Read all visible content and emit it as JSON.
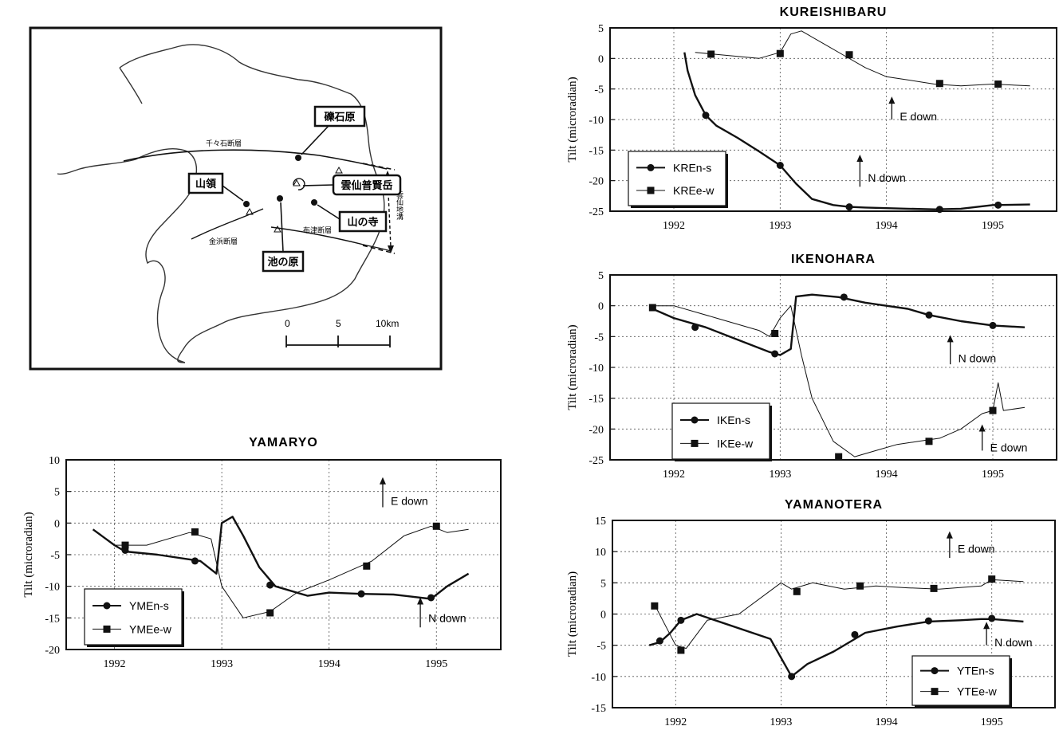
{
  "map": {
    "labels": {
      "reki": "礫石原",
      "unzen": "雲仙普賢岳",
      "yamaryo": "山領",
      "yamanotera": "山の寺",
      "ikenohara": "池の原"
    },
    "faults": {
      "chijiwa": "千々石断層",
      "kanahama": "金浜断層",
      "futsu": "布津断層",
      "graben": "雲仙地溝"
    },
    "scale": {
      "zero": "0",
      "five": "5",
      "ten": "10km"
    }
  },
  "chart_data": [
    {
      "id": "kureishibaru",
      "type": "line",
      "title": "KUREISHIBARU",
      "ylabel": "Tilt (microradian)",
      "xlabel": "",
      "xlim": [
        1991.4,
        1995.6
      ],
      "ylim": [
        -25,
        5
      ],
      "yticks": [
        5,
        0,
        -5,
        -10,
        -15,
        -20,
        -25
      ],
      "xticks": [
        1992,
        1993,
        1994,
        1995
      ],
      "grid": true,
      "legend_position": "bottom-left",
      "annotations": [
        {
          "text": "E down",
          "x": 1994.05,
          "y": -9.5,
          "arrow_from": -10,
          "arrow_to": -6.5
        },
        {
          "text": "N down",
          "x": 1993.75,
          "y": -19.5,
          "arrow_from": -21,
          "arrow_to": -16
        }
      ],
      "series": [
        {
          "name": "KREn-s",
          "marker": "circle",
          "weight": "thick",
          "x": [
            1992.1,
            1992.13,
            1992.2,
            1992.3,
            1992.4,
            1992.6,
            1992.8,
            1993.0,
            1993.15,
            1993.3,
            1993.5,
            1993.65,
            1993.8,
            1994.0,
            1994.2,
            1994.45,
            1994.7,
            1995.0,
            1995.35
          ],
          "y": [
            1,
            -2,
            -6,
            -9.3,
            -11,
            -13,
            -15.2,
            -17.5,
            -20.5,
            -23,
            -24,
            -24.3,
            -24.4,
            -24.5,
            -24.6,
            -24.7,
            -24.6,
            -24,
            -23.9
          ],
          "markers_x": [
            1992.3,
            1993.0,
            1993.65,
            1994.5,
            1995.05
          ],
          "markers_y": [
            -9.3,
            -17.5,
            -24.3,
            -24.7,
            -24
          ]
        },
        {
          "name": "KREe-w",
          "marker": "square",
          "weight": "thin",
          "x": [
            1992.2,
            1992.5,
            1992.8,
            1993.0,
            1993.1,
            1993.2,
            1993.4,
            1993.6,
            1993.8,
            1994.0,
            1994.2,
            1994.45,
            1994.7,
            1995.0,
            1995.35
          ],
          "y": [
            1,
            0.5,
            0,
            1,
            4,
            4.5,
            2.5,
            0.5,
            -1.5,
            -3,
            -3.5,
            -4.2,
            -4.5,
            -4.2,
            -4.5
          ],
          "markers_x": [
            1992.35,
            1993.0,
            1993.65,
            1994.5,
            1995.05
          ],
          "markers_y": [
            0.7,
            0.8,
            0.6,
            -4.1,
            -4.2
          ]
        }
      ]
    },
    {
      "id": "ikenohara",
      "type": "line",
      "title": "IKENOHARA",
      "ylabel": "Tilt (microradian)",
      "xlabel": "",
      "xlim": [
        1991.4,
        1995.6
      ],
      "ylim": [
        -25,
        5
      ],
      "yticks": [
        5,
        0,
        -5,
        -10,
        -15,
        -20,
        -25
      ],
      "xticks": [
        1992,
        1993,
        1994,
        1995
      ],
      "grid": true,
      "legend_position": "bottom-left",
      "annotations": [
        {
          "text": "N down",
          "x": 1994.6,
          "y": -8.5,
          "arrow_from": -9.5,
          "arrow_to": -5
        },
        {
          "text": "E down",
          "x": 1994.9,
          "y": -23,
          "arrow_from": -23.5,
          "arrow_to": -19.5
        }
      ],
      "series": [
        {
          "name": "IKEn-s",
          "marker": "circle",
          "weight": "thick",
          "x": [
            1991.8,
            1992.0,
            1992.3,
            1992.6,
            1992.9,
            1993.0,
            1993.1,
            1993.15,
            1993.3,
            1993.55,
            1993.8,
            1994.0,
            1994.2,
            1994.4,
            1994.7,
            1995.0,
            1995.3
          ],
          "y": [
            -0.5,
            -2,
            -3.5,
            -5.5,
            -7.5,
            -8,
            -7,
            1.5,
            1.8,
            1.4,
            0.5,
            0,
            -0.5,
            -1.5,
            -2.5,
            -3.2,
            -3.5
          ],
          "markers_x": [
            1992.2,
            1992.95,
            1993.6,
            1994.4,
            1995.0
          ],
          "markers_y": [
            -3.5,
            -7.8,
            1.4,
            -1.5,
            -3.2
          ]
        },
        {
          "name": "IKEe-w",
          "marker": "square",
          "weight": "thin",
          "x": [
            1991.8,
            1992.0,
            1992.4,
            1992.8,
            1992.9,
            1993.0,
            1993.1,
            1993.2,
            1993.3,
            1993.5,
            1993.7,
            1993.9,
            1994.1,
            1994.3,
            1994.5,
            1994.7,
            1994.9,
            1995.0,
            1995.05,
            1995.1,
            1995.3
          ],
          "y": [
            0,
            0,
            -2,
            -4,
            -5,
            -2,
            0,
            -8,
            -15,
            -22,
            -24.5,
            -23.5,
            -22.5,
            -22,
            -21.5,
            -20,
            -17.5,
            -17,
            -12.5,
            -17,
            -16.5
          ],
          "markers_x": [
            1991.8,
            1992.95,
            1993.55,
            1994.4,
            1995.0
          ],
          "markers_y": [
            -0.3,
            -4.5,
            -24.5,
            -22,
            -17
          ]
        }
      ]
    },
    {
      "id": "yamaryo",
      "type": "line",
      "title": "YAMARYO",
      "ylabel": "Tilt (microradian)",
      "xlabel": "",
      "xlim": [
        1991.55,
        1995.6
      ],
      "ylim": [
        -20,
        10
      ],
      "yticks": [
        10,
        5,
        0,
        -5,
        -10,
        -15,
        -20
      ],
      "xticks": [
        1992,
        1993,
        1994,
        1995
      ],
      "grid": true,
      "legend_position": "bottom-left",
      "annotations": [
        {
          "text": "E down",
          "x": 1994.5,
          "y": 3.5,
          "arrow_from": 2.5,
          "arrow_to": 7
        },
        {
          "text": "N down",
          "x": 1994.85,
          "y": -15,
          "arrow_from": -16.5,
          "arrow_to": -12
        }
      ],
      "series": [
        {
          "name": "YMEn-s",
          "marker": "circle",
          "weight": "thick",
          "x": [
            1991.8,
            1992.0,
            1992.1,
            1992.4,
            1992.8,
            1992.95,
            1993.0,
            1993.1,
            1993.2,
            1993.35,
            1993.5,
            1993.8,
            1994.0,
            1994.3,
            1994.6,
            1994.95,
            1995.1,
            1995.3
          ],
          "y": [
            -1,
            -3.5,
            -4.5,
            -5,
            -6,
            -8,
            0,
            1,
            -2,
            -7,
            -10,
            -11.5,
            -11,
            -11.2,
            -11.3,
            -12,
            -10,
            -8
          ],
          "markers_x": [
            1992.1,
            1992.75,
            1993.45,
            1994.3,
            1994.95
          ],
          "markers_y": [
            -4.3,
            -6,
            -9.8,
            -11.2,
            -11.8
          ]
        },
        {
          "name": "YMEe-w",
          "marker": "square",
          "weight": "thin",
          "x": [
            1992.0,
            1992.3,
            1992.7,
            1992.9,
            1993.0,
            1993.2,
            1993.45,
            1993.7,
            1994.0,
            1994.4,
            1994.7,
            1994.95,
            1995.1,
            1995.3
          ],
          "y": [
            -3.5,
            -3.5,
            -1.5,
            -2.5,
            -10,
            -15,
            -14,
            -11,
            -9,
            -6,
            -2,
            -0.5,
            -1.5,
            -1
          ],
          "markers_x": [
            1992.1,
            1992.75,
            1993.45,
            1994.35,
            1995.0
          ],
          "markers_y": [
            -3.5,
            -1.4,
            -14.2,
            -6.8,
            -0.5
          ]
        }
      ]
    },
    {
      "id": "yamanotera",
      "type": "line",
      "title": "YAMANOTERA",
      "ylabel": "Tilt (microradian)",
      "xlabel": "",
      "xlim": [
        1991.4,
        1995.6
      ],
      "ylim": [
        -15,
        15
      ],
      "yticks": [
        15,
        10,
        5,
        0,
        -5,
        -10,
        -15
      ],
      "xticks": [
        1992,
        1993,
        1994,
        1995
      ],
      "grid": true,
      "legend_position": "bottom-right",
      "annotations": [
        {
          "text": "E down",
          "x": 1994.6,
          "y": 10.5,
          "arrow_from": 9,
          "arrow_to": 13
        },
        {
          "text": "N down",
          "x": 1994.95,
          "y": -4.5,
          "arrow_from": -5,
          "arrow_to": -1.5
        }
      ],
      "series": [
        {
          "name": "YTEn-s",
          "marker": "circle",
          "weight": "thick",
          "x": [
            1991.75,
            1991.85,
            1991.95,
            1992.05,
            1992.2,
            1992.9,
            1993.0,
            1993.1,
            1993.25,
            1993.5,
            1993.8,
            1994.1,
            1994.4,
            1994.7,
            1994.9,
            1995.0,
            1995.3
          ],
          "y": [
            -5,
            -4.5,
            -3,
            -1,
            0,
            -4,
            -7,
            -10,
            -8,
            -6,
            -3,
            -2,
            -1.2,
            -1,
            -0.8,
            -0.8,
            -1.2
          ],
          "markers_x": [
            1991.85,
            1992.05,
            1993.1,
            1993.7,
            1994.4,
            1995.0
          ],
          "markers_y": [
            -4.3,
            -1,
            -10,
            -3.3,
            -1.1,
            -0.7
          ]
        },
        {
          "name": "YTEe-w",
          "marker": "square",
          "weight": "thin",
          "x": [
            1991.8,
            1992.0,
            1992.1,
            1992.3,
            1992.6,
            1993.0,
            1993.1,
            1993.3,
            1993.6,
            1993.9,
            1994.2,
            1994.5,
            1994.9,
            1995.0,
            1995.3
          ],
          "y": [
            1.5,
            -5,
            -5.5,
            -1,
            0,
            5,
            4,
            5,
            4,
            4.5,
            4.2,
            4,
            4.5,
            5.5,
            5.2
          ],
          "markers_x": [
            1991.8,
            1992.05,
            1993.15,
            1993.75,
            1994.45,
            1995.0
          ],
          "markers_y": [
            1.3,
            -5.8,
            3.6,
            4.5,
            4.1,
            5.6
          ]
        }
      ]
    }
  ]
}
